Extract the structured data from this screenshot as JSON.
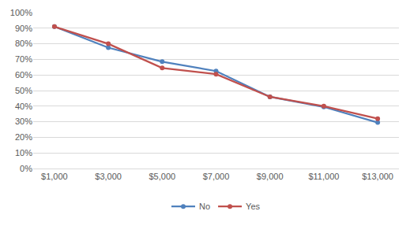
{
  "chart_data": {
    "type": "line",
    "categories": [
      "$1,000",
      "$3,000",
      "$5,000",
      "$7,000",
      "$9,000",
      "$11,000",
      "$13,000"
    ],
    "series": [
      {
        "name": "No",
        "color": "#4f81bd",
        "marker": "circle",
        "values": [
          91,
          77.5,
          68.5,
          62.5,
          46,
          39.5,
          29.5
        ]
      },
      {
        "name": "Yes",
        "color": "#c0504d",
        "marker": "circle",
        "values": [
          91,
          80,
          64.5,
          60.5,
          46,
          40,
          32
        ]
      }
    ],
    "ylim": [
      0,
      100
    ],
    "yticks": [
      {
        "value": 0,
        "label": "0%"
      },
      {
        "value": 10,
        "label": "10%"
      },
      {
        "value": 20,
        "label": "20%"
      },
      {
        "value": 30,
        "label": "30%"
      },
      {
        "value": 40,
        "label": "40%"
      },
      {
        "value": 50,
        "label": "50%"
      },
      {
        "value": 60,
        "label": "60%"
      },
      {
        "value": 70,
        "label": "70%"
      },
      {
        "value": 80,
        "label": "80%"
      },
      {
        "value": 90,
        "label": "90%"
      },
      {
        "value": 100,
        "label": "100%"
      }
    ],
    "grid": true,
    "legend": "bottom"
  }
}
